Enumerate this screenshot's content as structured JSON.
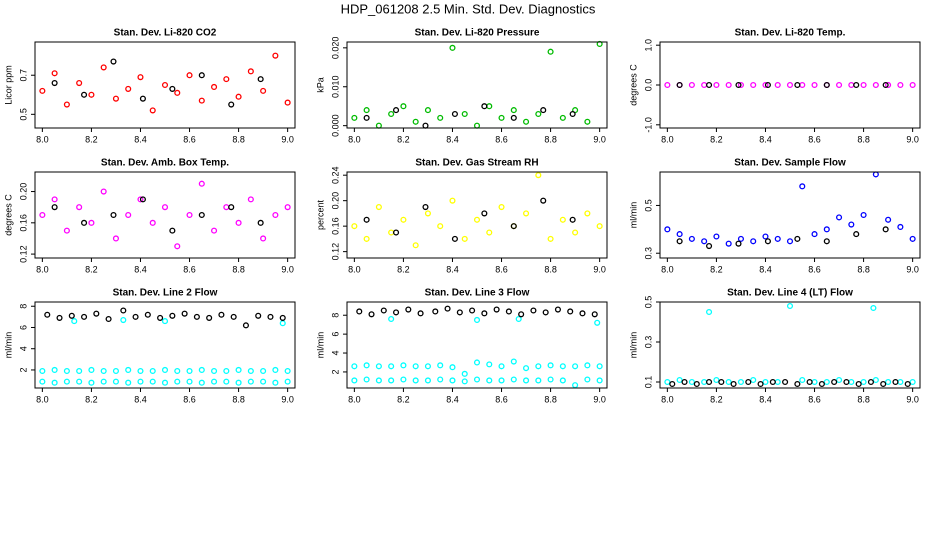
{
  "title": "HDP_061208  2.5 Min. Std. Dev. Diagnostics",
  "chart_data": [
    {
      "type": "scatter",
      "title": "Stan. Dev. Li-820 CO2",
      "y_label": "Licor ppm",
      "xlim": [
        7.97,
        9.03
      ],
      "xticks": [
        {
          "value": 8,
          "label": "8.0"
        },
        8.2,
        8.4,
        8.6,
        8.8,
        {
          "value": 9,
          "label": "9.0"
        }
      ],
      "ylim": [
        0.43,
        0.87
      ],
      "yticks": [
        0.5,
        0.7
      ],
      "series": [
        {
          "color": "#ff0000",
          "x": [
            8.0,
            8.05,
            8.1,
            8.15,
            8.2,
            8.25,
            8.3,
            8.35,
            8.4,
            8.45,
            8.5,
            8.55,
            8.6,
            8.65,
            8.7,
            8.75,
            8.8,
            8.85,
            8.9,
            8.95,
            9.0
          ],
          "values": [
            0.62,
            0.71,
            0.55,
            0.66,
            0.6,
            0.74,
            0.58,
            0.63,
            0.69,
            0.52,
            0.65,
            0.61,
            0.7,
            0.57,
            0.64,
            0.68,
            0.59,
            0.72,
            0.62,
            0.8,
            0.56
          ]
        },
        {
          "color": "#000000",
          "x": [
            8.05,
            8.17,
            8.29,
            8.41,
            8.53,
            8.65,
            8.77,
            8.89
          ],
          "values": [
            0.66,
            0.6,
            0.77,
            0.58,
            0.63,
            0.7,
            0.55,
            0.68
          ]
        }
      ]
    },
    {
      "type": "scatter",
      "title": "Stan. Dev. Li-820 Pressure",
      "y_label": "kPa",
      "xlim": [
        7.97,
        9.03
      ],
      "xticks": [
        {
          "value": 8,
          "label": "8.0"
        },
        8.2,
        8.4,
        8.6,
        8.8,
        {
          "value": 9,
          "label": "9.0"
        }
      ],
      "ylim": [
        -0.0006,
        0.0215
      ],
      "yticks": [
        {
          "value": 0,
          "label": "0.000"
        },
        {
          "value": 0.01,
          "label": "0.010"
        },
        {
          "value": 0.02,
          "label": "0.020"
        }
      ],
      "series": [
        {
          "color": "#00bb00",
          "x": [
            8.0,
            8.05,
            8.1,
            8.15,
            8.2,
            8.25,
            8.3,
            8.35,
            8.4,
            8.45,
            8.5,
            8.55,
            8.6,
            8.65,
            8.7,
            8.75,
            8.8,
            8.85,
            8.9,
            8.95,
            9.0
          ],
          "values": [
            0.002,
            0.004,
            0,
            0.003,
            0.005,
            0.001,
            0.004,
            0.002,
            0.02,
            0.003,
            0,
            0.005,
            0.002,
            0.004,
            0.001,
            0.003,
            0.019,
            0.002,
            0.004,
            0.001,
            0.021
          ]
        },
        {
          "color": "#000000",
          "x": [
            8.05,
            8.17,
            8.29,
            8.41,
            8.53,
            8.65,
            8.77,
            8.89
          ],
          "values": [
            0.002,
            0.004,
            0,
            0.003,
            0.005,
            0.002,
            0.004,
            0.003
          ]
        }
      ]
    },
    {
      "type": "scatter",
      "title": "Stan. Dev. Li-820 Temp.",
      "y_label": "degrees C",
      "xlim": [
        7.97,
        9.03
      ],
      "xticks": [
        {
          "value": 8,
          "label": "8.0"
        },
        8.2,
        8.4,
        8.6,
        8.8,
        {
          "value": 9,
          "label": "9.0"
        }
      ],
      "ylim": [
        -1.08,
        1.08
      ],
      "yticks": [
        {
          "value": -1,
          "label": "-1.0"
        },
        {
          "value": 0,
          "label": "0.0"
        },
        {
          "value": 1,
          "label": "1.0"
        }
      ],
      "series": [
        {
          "color": "#ff00ff",
          "x": [
            8.0,
            8.05,
            8.1,
            8.15,
            8.2,
            8.25,
            8.3,
            8.35,
            8.4,
            8.45,
            8.5,
            8.55,
            8.6,
            8.65,
            8.7,
            8.75,
            8.8,
            8.85,
            8.9,
            8.95,
            9.0
          ],
          "values": [
            0,
            0,
            0,
            0,
            0,
            0,
            0,
            0,
            0,
            0,
            0,
            0,
            0,
            0,
            0,
            0,
            0,
            0,
            0,
            0,
            0
          ]
        },
        {
          "color": "#000000",
          "x": [
            8.05,
            8.17,
            8.29,
            8.41,
            8.53,
            8.65,
            8.77,
            8.89
          ],
          "values": [
            0,
            0,
            0,
            0,
            0,
            0,
            0,
            0
          ]
        }
      ]
    },
    {
      "type": "scatter",
      "title": "Stan. Dev. Amb. Box Temp.",
      "y_label": "degrees C",
      "xlim": [
        7.97,
        9.03
      ],
      "xticks": [
        {
          "value": 8,
          "label": "8.0"
        },
        8.2,
        8.4,
        8.6,
        8.8,
        {
          "value": 9,
          "label": "9.0"
        }
      ],
      "ylim": [
        0.115,
        0.225
      ],
      "yticks": [
        0.12,
        0.16,
        {
          "value": 0.2,
          "label": "0.20"
        }
      ],
      "series": [
        {
          "color": "#ff00ff",
          "x": [
            8.0,
            8.05,
            8.1,
            8.15,
            8.2,
            8.25,
            8.3,
            8.35,
            8.4,
            8.45,
            8.5,
            8.55,
            8.6,
            8.65,
            8.7,
            8.75,
            8.8,
            8.85,
            8.9,
            8.95,
            9.0
          ],
          "values": [
            0.17,
            0.19,
            0.15,
            0.18,
            0.16,
            0.2,
            0.14,
            0.17,
            0.19,
            0.16,
            0.18,
            0.13,
            0.17,
            0.21,
            0.15,
            0.18,
            0.16,
            0.19,
            0.14,
            0.17,
            0.18
          ]
        },
        {
          "color": "#000000",
          "x": [
            8.05,
            8.17,
            8.29,
            8.41,
            8.53,
            8.65,
            8.77,
            8.89
          ],
          "values": [
            0.18,
            0.16,
            0.17,
            0.19,
            0.15,
            0.17,
            0.18,
            0.16
          ]
        }
      ]
    },
    {
      "type": "scatter",
      "title": "Stan. Dev. Gas Stream RH",
      "y_label": "percent",
      "xlim": [
        7.97,
        9.03
      ],
      "xticks": [
        {
          "value": 8,
          "label": "8.0"
        },
        8.2,
        8.4,
        8.6,
        8.8,
        {
          "value": 9,
          "label": "9.0"
        }
      ],
      "ylim": [
        0.11,
        0.245
      ],
      "yticks": [
        0.12,
        0.16,
        {
          "value": 0.2,
          "label": "0.20"
        },
        0.24
      ],
      "series": [
        {
          "color": "#ffff00",
          "x": [
            8.0,
            8.05,
            8.1,
            8.15,
            8.2,
            8.25,
            8.3,
            8.35,
            8.4,
            8.45,
            8.5,
            8.55,
            8.6,
            8.65,
            8.7,
            8.75,
            8.8,
            8.85,
            8.9,
            8.95,
            9.0
          ],
          "values": [
            0.16,
            0.14,
            0.19,
            0.15,
            0.17,
            0.13,
            0.18,
            0.16,
            0.2,
            0.14,
            0.17,
            0.15,
            0.19,
            0.16,
            0.18,
            0.24,
            0.14,
            0.17,
            0.15,
            0.18,
            0.16
          ]
        },
        {
          "color": "#000000",
          "x": [
            8.05,
            8.17,
            8.29,
            8.41,
            8.53,
            8.65,
            8.77,
            8.89
          ],
          "values": [
            0.17,
            0.15,
            0.19,
            0.14,
            0.18,
            0.16,
            0.2,
            0.17
          ]
        }
      ]
    },
    {
      "type": "scatter",
      "title": "Stan. Dev. Sample Flow",
      "y_label": "ml/min",
      "xlim": [
        7.97,
        9.03
      ],
      "xticks": [
        {
          "value": 8,
          "label": "8.0"
        },
        8.2,
        8.4,
        8.6,
        8.8,
        {
          "value": 9,
          "label": "9.0"
        }
      ],
      "ylim": [
        0.28,
        0.64
      ],
      "yticks": [
        0.3,
        0.5
      ],
      "series": [
        {
          "color": "#0000ff",
          "x": [
            8.0,
            8.05,
            8.1,
            8.15,
            8.2,
            8.25,
            8.3,
            8.35,
            8.4,
            8.45,
            8.5,
            8.55,
            8.6,
            8.65,
            8.7,
            8.75,
            8.8,
            8.85,
            8.9,
            8.95,
            9.0
          ],
          "values": [
            0.4,
            0.38,
            0.36,
            0.35,
            0.37,
            0.34,
            0.36,
            0.35,
            0.37,
            0.36,
            0.35,
            0.58,
            0.38,
            0.4,
            0.45,
            0.42,
            0.46,
            0.63,
            0.44,
            0.41,
            0.36
          ]
        },
        {
          "color": "#000000",
          "x": [
            8.05,
            8.17,
            8.29,
            8.41,
            8.53,
            8.65,
            8.77,
            8.89
          ],
          "values": [
            0.35,
            0.33,
            0.34,
            0.35,
            0.36,
            0.35,
            0.38,
            0.4
          ]
        }
      ]
    },
    {
      "type": "scatter",
      "title": "Stan. Dev. Line 2 Flow",
      "y_label": "ml/min",
      "xlim": [
        7.97,
        9.03
      ],
      "xticks": [
        {
          "value": 8,
          "label": "8.0"
        },
        8.2,
        8.4,
        8.6,
        8.8,
        {
          "value": 9,
          "label": "9.0"
        }
      ],
      "ylim": [
        0.3,
        8.4
      ],
      "yticks": [
        2,
        4,
        6,
        8
      ],
      "series": [
        {
          "color": "#00ffff",
          "x": [
            8.0,
            8.05,
            8.1,
            8.15,
            8.2,
            8.25,
            8.3,
            8.35,
            8.4,
            8.45,
            8.5,
            8.55,
            8.6,
            8.65,
            8.7,
            8.75,
            8.8,
            8.85,
            8.9,
            8.95,
            9.0
          ],
          "values": [
            0.9,
            0.8,
            0.9,
            0.9,
            0.8,
            0.9,
            0.9,
            0.8,
            0.9,
            0.9,
            0.8,
            0.9,
            0.9,
            0.8,
            0.9,
            0.9,
            0.8,
            0.9,
            0.9,
            0.8,
            0.9
          ]
        },
        {
          "color": "#00ffff",
          "x": [
            8.0,
            8.05,
            8.1,
            8.15,
            8.2,
            8.25,
            8.3,
            8.35,
            8.4,
            8.45,
            8.5,
            8.55,
            8.6,
            8.65,
            8.7,
            8.75,
            8.8,
            8.85,
            8.9,
            8.95,
            9.0
          ],
          "values": [
            1.9,
            2.0,
            1.9,
            1.9,
            2.0,
            1.9,
            1.9,
            2.0,
            1.9,
            1.9,
            2.0,
            1.9,
            1.9,
            2.0,
            1.9,
            1.9,
            2.0,
            1.9,
            1.9,
            2.0,
            1.9
          ]
        },
        {
          "color": "#00ffff",
          "x": [
            8.13,
            8.33,
            8.5,
            8.98
          ],
          "values": [
            6.6,
            6.7,
            6.6,
            6.4
          ]
        },
        {
          "color": "#000000",
          "x": [
            8.02,
            8.07,
            8.12,
            8.17,
            8.22,
            8.27,
            8.33,
            8.38,
            8.43,
            8.48,
            8.53,
            8.58,
            8.63,
            8.68,
            8.73,
            8.78,
            8.83,
            8.88,
            8.93,
            8.98
          ],
          "values": [
            7.2,
            6.9,
            7.1,
            7.0,
            7.3,
            6.8,
            7.6,
            7.0,
            7.2,
            6.9,
            7.1,
            7.3,
            7.0,
            6.9,
            7.2,
            7.0,
            6.2,
            7.1,
            7.0,
            6.9
          ]
        }
      ]
    },
    {
      "type": "scatter",
      "title": "Stan. Dev. Line 3 Flow",
      "y_label": "ml/min",
      "xlim": [
        7.97,
        9.03
      ],
      "xticks": [
        {
          "value": 8,
          "label": "8.0"
        },
        8.2,
        8.4,
        8.6,
        8.8,
        {
          "value": 9,
          "label": "9.0"
        }
      ],
      "ylim": [
        0.3,
        9.4
      ],
      "yticks": [
        2,
        4,
        6,
        8
      ],
      "series": [
        {
          "color": "#00ffff",
          "x": [
            8.0,
            8.05,
            8.1,
            8.15,
            8.2,
            8.25,
            8.3,
            8.35,
            8.4,
            8.45,
            8.5,
            8.55,
            8.6,
            8.65,
            8.7,
            8.75,
            8.8,
            8.85,
            8.9,
            8.95,
            9.0
          ],
          "values": [
            1.1,
            1.2,
            1.1,
            1.1,
            1.2,
            1.1,
            1.1,
            1.2,
            1.1,
            1.0,
            1.2,
            1.1,
            1.1,
            1.2,
            1.1,
            1.1,
            1.2,
            1.1,
            0.6,
            1.2,
            1.1
          ]
        },
        {
          "color": "#00ffff",
          "x": [
            8.0,
            8.05,
            8.1,
            8.15,
            8.2,
            8.25,
            8.3,
            8.35,
            8.4,
            8.45,
            8.5,
            8.55,
            8.6,
            8.65,
            8.7,
            8.75,
            8.8,
            8.85,
            8.9,
            8.95,
            9.0
          ],
          "values": [
            2.6,
            2.7,
            2.6,
            2.6,
            2.7,
            2.6,
            2.6,
            2.7,
            2.5,
            1.8,
            3.0,
            2.8,
            2.6,
            3.1,
            2.4,
            2.6,
            2.7,
            2.6,
            2.6,
            2.7,
            2.6
          ]
        },
        {
          "color": "#00ffff",
          "x": [
            8.15,
            8.5,
            8.67,
            8.99
          ],
          "values": [
            7.6,
            7.5,
            7.6,
            7.2
          ]
        },
        {
          "color": "#000000",
          "x": [
            8.02,
            8.07,
            8.12,
            8.17,
            8.22,
            8.27,
            8.33,
            8.38,
            8.43,
            8.48,
            8.53,
            8.58,
            8.63,
            8.68,
            8.73,
            8.78,
            8.83,
            8.88,
            8.93,
            8.98
          ],
          "values": [
            8.4,
            8.1,
            8.5,
            8.3,
            8.6,
            8.2,
            8.4,
            8.7,
            8.3,
            8.5,
            8.2,
            8.6,
            8.4,
            8.1,
            8.5,
            8.3,
            8.6,
            8.4,
            8.2,
            8.1
          ]
        }
      ]
    },
    {
      "type": "scatter",
      "title": "Stan. Dev. Line 4 (LT) Flow",
      "y_label": "ml/min",
      "xlim": [
        7.97,
        9.03
      ],
      "xticks": [
        {
          "value": 8,
          "label": "8.0"
        },
        8.2,
        8.4,
        8.6,
        8.8,
        {
          "value": 9,
          "label": "9.0"
        }
      ],
      "ylim": [
        0.07,
        0.5
      ],
      "yticks": [
        0.1,
        0.3,
        0.5
      ],
      "series": [
        {
          "color": "#00ffff",
          "x": [
            8.0,
            8.05,
            8.1,
            8.15,
            8.17,
            8.2,
            8.25,
            8.3,
            8.35,
            8.4,
            8.45,
            8.5,
            8.55,
            8.6,
            8.65,
            8.7,
            8.75,
            8.8,
            8.84,
            8.85,
            8.9,
            8.95,
            9.0
          ],
          "values": [
            0.1,
            0.11,
            0.1,
            0.1,
            0.45,
            0.11,
            0.1,
            0.1,
            0.11,
            0.1,
            0.1,
            0.48,
            0.11,
            0.1,
            0.1,
            0.11,
            0.1,
            0.1,
            0.47,
            0.11,
            0.1,
            0.1,
            0.1
          ]
        },
        {
          "color": "#000000",
          "x": [
            8.02,
            8.07,
            8.12,
            8.17,
            8.22,
            8.27,
            8.33,
            8.38,
            8.43,
            8.48,
            8.53,
            8.58,
            8.63,
            8.68,
            8.73,
            8.78,
            8.83,
            8.88,
            8.93,
            8.98
          ],
          "values": [
            0.09,
            0.1,
            0.09,
            0.1,
            0.1,
            0.09,
            0.1,
            0.09,
            0.1,
            0.1,
            0.09,
            0.1,
            0.09,
            0.1,
            0.1,
            0.09,
            0.1,
            0.09,
            0.1,
            0.09
          ]
        }
      ]
    }
  ]
}
